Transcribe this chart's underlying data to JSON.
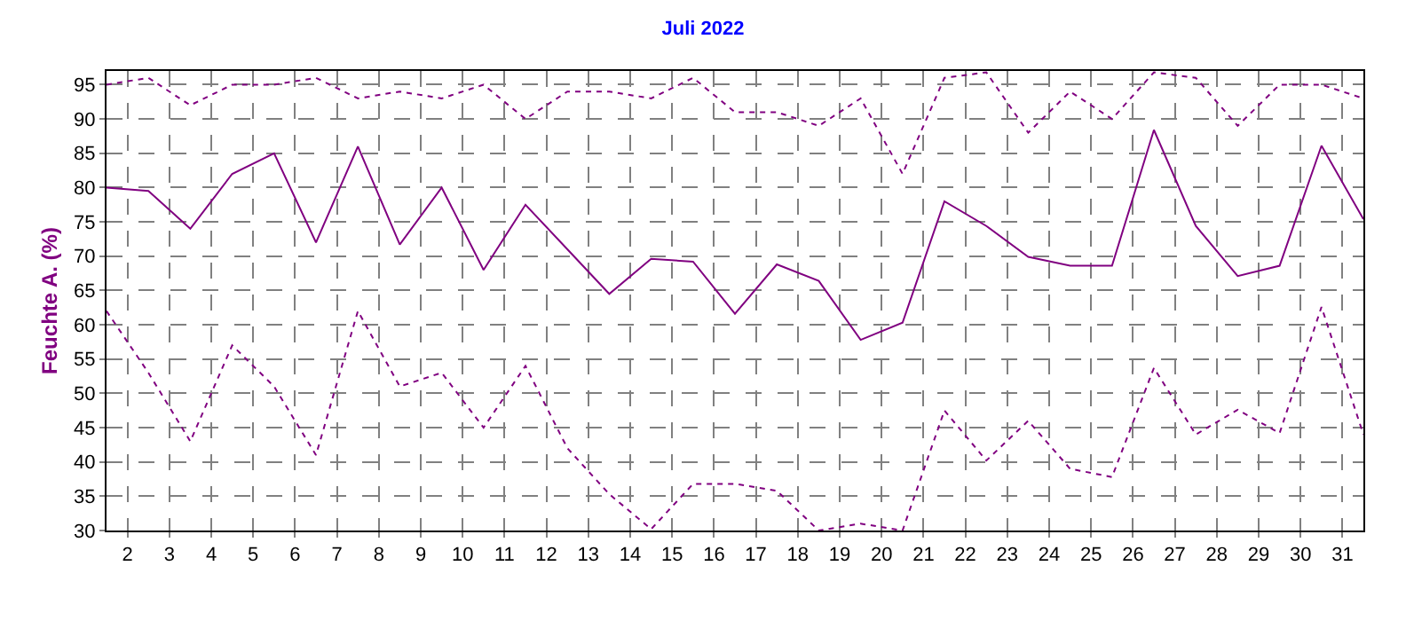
{
  "chart_data": {
    "type": "line",
    "title": "Juli 2022",
    "ylabel": "Feuchte A. (%)",
    "x": [
      1,
      2,
      3,
      4,
      5,
      6,
      7,
      8,
      9,
      10,
      11,
      12,
      13,
      14,
      15,
      16,
      17,
      18,
      19,
      20,
      21,
      22,
      23,
      24,
      25,
      26,
      27,
      28,
      29,
      30,
      31
    ],
    "xlim": [
      1,
      31
    ],
    "xticks": [
      {
        "value": 1.5,
        "label": "2"
      },
      {
        "value": 2.5,
        "label": "3"
      },
      {
        "value": 3.5,
        "label": "4"
      },
      {
        "value": 4.5,
        "label": "5"
      },
      {
        "value": 5.5,
        "label": "6"
      },
      {
        "value": 6.5,
        "label": "7"
      },
      {
        "value": 7.5,
        "label": "8"
      },
      {
        "value": 8.5,
        "label": "9"
      },
      {
        "value": 9.5,
        "label": "10"
      },
      {
        "value": 10.5,
        "label": "11"
      },
      {
        "value": 11.5,
        "label": "12"
      },
      {
        "value": 12.5,
        "label": "13"
      },
      {
        "value": 13.5,
        "label": "14"
      },
      {
        "value": 14.5,
        "label": "15"
      },
      {
        "value": 15.5,
        "label": "16"
      },
      {
        "value": 16.5,
        "label": "17"
      },
      {
        "value": 17.5,
        "label": "18"
      },
      {
        "value": 18.5,
        "label": "19"
      },
      {
        "value": 19.5,
        "label": "20"
      },
      {
        "value": 20.5,
        "label": "21"
      },
      {
        "value": 21.5,
        "label": "22"
      },
      {
        "value": 22.5,
        "label": "23"
      },
      {
        "value": 23.5,
        "label": "24"
      },
      {
        "value": 24.5,
        "label": "25"
      },
      {
        "value": 25.5,
        "label": "26"
      },
      {
        "value": 26.5,
        "label": "27"
      },
      {
        "value": 27.5,
        "label": "28"
      },
      {
        "value": 28.5,
        "label": "29"
      },
      {
        "value": 29.5,
        "label": "30"
      },
      {
        "value": 30.5,
        "label": "31"
      }
    ],
    "ylim": [
      30,
      97
    ],
    "yticks": [
      30,
      35,
      40,
      45,
      50,
      55,
      60,
      65,
      70,
      75,
      80,
      85,
      90,
      95
    ],
    "grid": true,
    "marker": "none",
    "series": [
      {
        "color": "#800080",
        "line_style": "dotted",
        "values": [
          95,
          96,
          92,
          95,
          95,
          96,
          93,
          94,
          93,
          95,
          90,
          94,
          94,
          93,
          96,
          91,
          91,
          89,
          93,
          82,
          96,
          96.8,
          88,
          94,
          90,
          96.8,
          96,
          89,
          95,
          95,
          93
        ]
      },
      {
        "color": "#800080",
        "line_style": "solid",
        "values": [
          80,
          79.5,
          74,
          82,
          85,
          72,
          86,
          71.7,
          80,
          68,
          77.5,
          71,
          64.5,
          69.6,
          69.2,
          61.6,
          68.8,
          66.4,
          57.8,
          60.3,
          78,
          74.4,
          69.9,
          68.6,
          68.6,
          88.4,
          74.4,
          67.1,
          68.6,
          86.1,
          75.4
        ]
      },
      {
        "color": "#800080",
        "line_style": "dotted",
        "values": [
          62,
          53,
          43,
          57,
          51,
          41,
          62,
          51,
          53,
          45,
          54,
          42,
          35.3,
          30.2,
          36.8,
          36.8,
          35.8,
          30,
          31,
          30,
          47.5,
          40.2,
          46,
          39,
          37.8,
          53.7,
          44,
          47.6,
          44.2,
          62.6,
          44
        ]
      }
    ]
  }
}
